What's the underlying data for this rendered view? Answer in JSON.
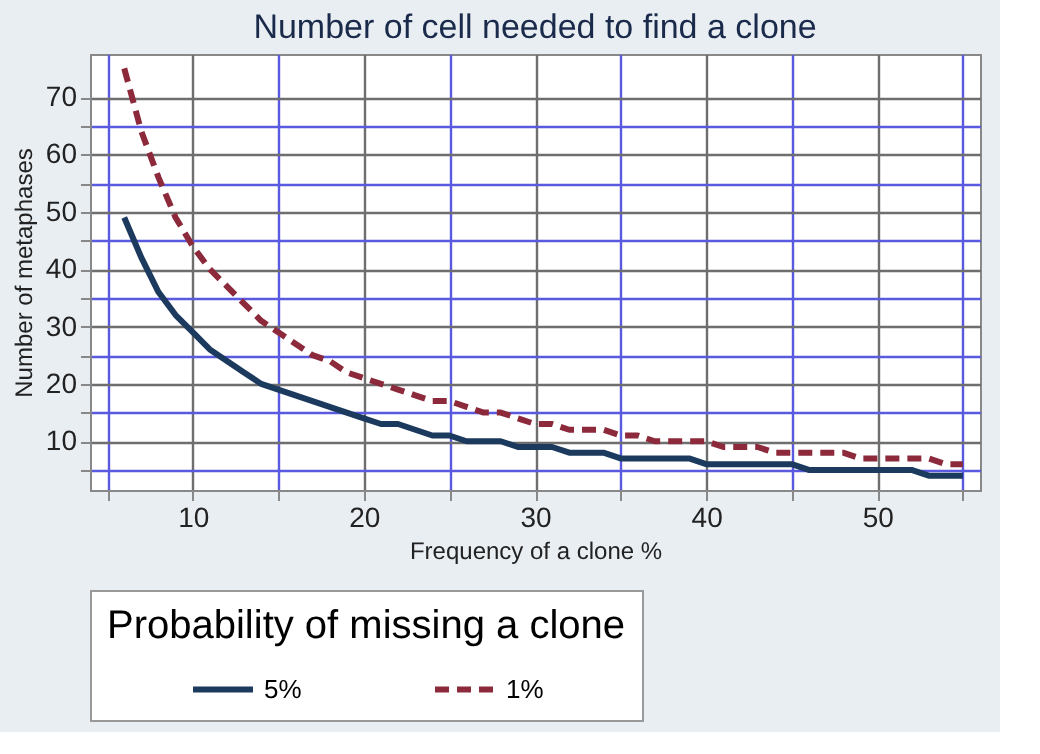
{
  "chart_data": {
    "type": "line",
    "title": "Number of cell needed to find a clone",
    "xlabel": "Frequency of a clone %",
    "ylabel": "Number of metaphases",
    "legend_title": "Probability of missing a clone",
    "x": [
      6,
      7,
      8,
      9,
      10,
      11,
      12,
      13,
      14,
      15,
      16,
      17,
      18,
      19,
      20,
      21,
      22,
      23,
      24,
      25,
      26,
      27,
      28,
      29,
      30,
      31,
      32,
      33,
      34,
      35,
      36,
      37,
      38,
      39,
      40,
      41,
      42,
      43,
      44,
      45,
      46,
      47,
      48,
      49,
      50,
      51,
      52,
      53,
      54,
      55
    ],
    "series": [
      {
        "name": "5%",
        "color": "#1c3a5e",
        "line_style": "solid",
        "values": [
          49,
          42,
          36,
          32,
          29,
          26,
          24,
          22,
          20,
          19,
          18,
          17,
          16,
          15,
          14,
          13,
          13,
          12,
          11,
          11,
          10,
          10,
          10,
          9,
          9,
          9,
          8,
          8,
          8,
          7,
          7,
          7,
          7,
          7,
          6,
          6,
          6,
          6,
          6,
          6,
          5,
          5,
          5,
          5,
          5,
          5,
          5,
          4,
          4,
          4
        ]
      },
      {
        "name": "1%",
        "color": "#8c2a3c",
        "line_style": "dashed",
        "values": [
          75,
          64,
          56,
          49,
          44,
          40,
          37,
          34,
          31,
          29,
          27,
          25,
          24,
          22,
          21,
          20,
          19,
          18,
          17,
          17,
          16,
          15,
          15,
          14,
          13,
          13,
          12,
          12,
          12,
          11,
          11,
          10,
          10,
          10,
          10,
          9,
          9,
          9,
          8,
          8,
          8,
          8,
          8,
          7,
          7,
          7,
          7,
          7,
          6,
          6
        ]
      }
    ],
    "xlim": [
      4,
      56
    ],
    "ylim": [
      1.5,
      77.5
    ],
    "xticks": [
      {
        "value": 5,
        "label": null
      },
      10,
      {
        "value": 15,
        "label": null
      },
      20,
      {
        "value": 25,
        "label": null
      },
      30,
      {
        "value": 35,
        "label": null
      },
      40,
      {
        "value": 45,
        "label": null
      },
      50,
      {
        "value": 55,
        "label": null
      }
    ],
    "yticks": [
      {
        "value": 5,
        "label": null
      },
      10,
      {
        "value": 15,
        "label": null
      },
      20,
      {
        "value": 25,
        "label": null
      },
      30,
      {
        "value": 35,
        "label": null
      },
      40,
      {
        "value": 45,
        "label": null
      },
      50,
      {
        "value": 55,
        "label": null
      },
      60,
      {
        "value": 65,
        "label": null
      },
      70
    ],
    "grid": true,
    "legend": "bottom",
    "marker": "none"
  }
}
